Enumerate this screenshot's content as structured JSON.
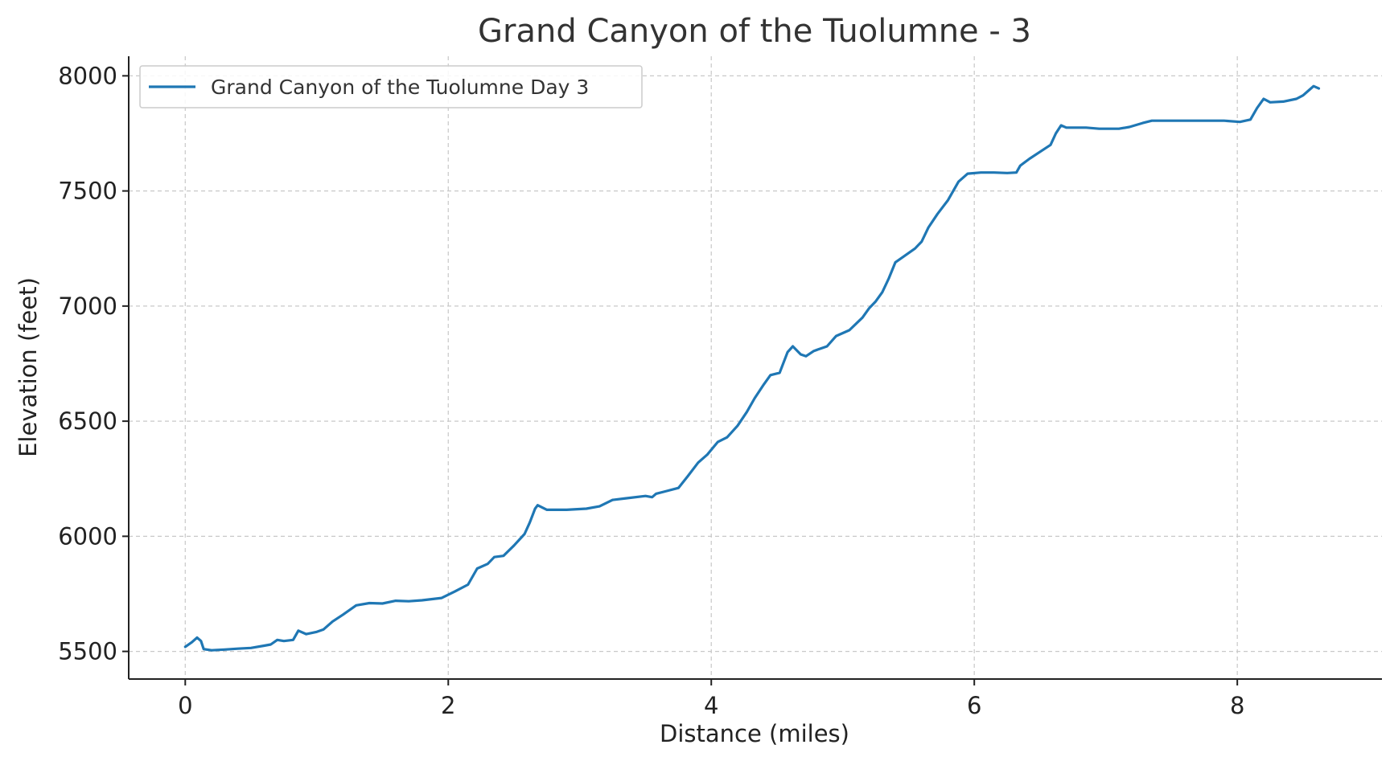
{
  "chart_data": {
    "type": "line",
    "title": "Grand Canyon of the Tuolumne - 3",
    "xlabel": "Distance (miles)",
    "ylabel": "Elevation (feet)",
    "xlim": [
      -0.43,
      9.1
    ],
    "ylim": [
      5380,
      8085
    ],
    "xticks": [
      0,
      2,
      4,
      6,
      8
    ],
    "xtick_labels": [
      "0",
      "2",
      "4",
      "6",
      "8"
    ],
    "yticks": [
      5500,
      6000,
      6500,
      7000,
      7500,
      8000
    ],
    "ytick_labels": [
      "5500",
      "6000",
      "6500",
      "7000",
      "7500",
      "8000"
    ],
    "grid": true,
    "legend_position": "top-left",
    "colors": {
      "series": "#1f77b4",
      "grid": "#c8c8c8",
      "axis": "#222222",
      "text": "#333333",
      "legend_border": "#cccccc"
    },
    "series": [
      {
        "name": "Grand Canyon of the Tuolumne Day 3",
        "points": [
          [
            0.0,
            5520
          ],
          [
            0.05,
            5540
          ],
          [
            0.09,
            5560
          ],
          [
            0.12,
            5545
          ],
          [
            0.14,
            5510
          ],
          [
            0.2,
            5505
          ],
          [
            0.3,
            5508
          ],
          [
            0.4,
            5512
          ],
          [
            0.5,
            5515
          ],
          [
            0.6,
            5525
          ],
          [
            0.65,
            5530
          ],
          [
            0.7,
            5550
          ],
          [
            0.75,
            5545
          ],
          [
            0.82,
            5550
          ],
          [
            0.86,
            5590
          ],
          [
            0.92,
            5575
          ],
          [
            1.0,
            5585
          ],
          [
            1.05,
            5595
          ],
          [
            1.12,
            5630
          ],
          [
            1.2,
            5660
          ],
          [
            1.3,
            5700
          ],
          [
            1.4,
            5710
          ],
          [
            1.5,
            5708
          ],
          [
            1.6,
            5720
          ],
          [
            1.7,
            5718
          ],
          [
            1.8,
            5722
          ],
          [
            1.95,
            5732
          ],
          [
            2.05,
            5760
          ],
          [
            2.15,
            5790
          ],
          [
            2.22,
            5860
          ],
          [
            2.3,
            5880
          ],
          [
            2.35,
            5910
          ],
          [
            2.42,
            5915
          ],
          [
            2.5,
            5960
          ],
          [
            2.58,
            6010
          ],
          [
            2.62,
            6060
          ],
          [
            2.66,
            6120
          ],
          [
            2.68,
            6135
          ],
          [
            2.75,
            6115
          ],
          [
            2.9,
            6115
          ],
          [
            3.05,
            6120
          ],
          [
            3.15,
            6130
          ],
          [
            3.25,
            6158
          ],
          [
            3.35,
            6165
          ],
          [
            3.5,
            6175
          ],
          [
            3.55,
            6170
          ],
          [
            3.58,
            6185
          ],
          [
            3.65,
            6195
          ],
          [
            3.75,
            6210
          ],
          [
            3.82,
            6260
          ],
          [
            3.9,
            6320
          ],
          [
            3.97,
            6355
          ],
          [
            4.05,
            6410
          ],
          [
            4.12,
            6430
          ],
          [
            4.2,
            6480
          ],
          [
            4.27,
            6540
          ],
          [
            4.33,
            6600
          ],
          [
            4.4,
            6660
          ],
          [
            4.45,
            6700
          ],
          [
            4.52,
            6710
          ],
          [
            4.58,
            6800
          ],
          [
            4.62,
            6825
          ],
          [
            4.68,
            6790
          ],
          [
            4.72,
            6782
          ],
          [
            4.78,
            6805
          ],
          [
            4.88,
            6825
          ],
          [
            4.95,
            6870
          ],
          [
            5.05,
            6895
          ],
          [
            5.15,
            6950
          ],
          [
            5.2,
            6990
          ],
          [
            5.25,
            7020
          ],
          [
            5.3,
            7060
          ],
          [
            5.35,
            7120
          ],
          [
            5.4,
            7190
          ],
          [
            5.45,
            7210
          ],
          [
            5.55,
            7250
          ],
          [
            5.6,
            7280
          ],
          [
            5.65,
            7340
          ],
          [
            5.72,
            7400
          ],
          [
            5.8,
            7460
          ],
          [
            5.88,
            7540
          ],
          [
            5.95,
            7575
          ],
          [
            6.05,
            7580
          ],
          [
            6.15,
            7580
          ],
          [
            6.25,
            7578
          ],
          [
            6.32,
            7580
          ],
          [
            6.35,
            7610
          ],
          [
            6.42,
            7640
          ],
          [
            6.5,
            7670
          ],
          [
            6.58,
            7700
          ],
          [
            6.62,
            7750
          ],
          [
            6.66,
            7785
          ],
          [
            6.7,
            7775
          ],
          [
            6.85,
            7775
          ],
          [
            6.95,
            7770
          ],
          [
            7.1,
            7770
          ],
          [
            7.18,
            7778
          ],
          [
            7.28,
            7795
          ],
          [
            7.35,
            7805
          ],
          [
            7.5,
            7805
          ],
          [
            7.7,
            7805
          ],
          [
            7.9,
            7805
          ],
          [
            8.02,
            7800
          ],
          [
            8.1,
            7810
          ],
          [
            8.15,
            7860
          ],
          [
            8.2,
            7900
          ],
          [
            8.25,
            7885
          ],
          [
            8.35,
            7888
          ],
          [
            8.45,
            7900
          ],
          [
            8.5,
            7915
          ],
          [
            8.55,
            7940
          ],
          [
            8.58,
            7955
          ],
          [
            8.62,
            7945
          ]
        ]
      }
    ]
  }
}
